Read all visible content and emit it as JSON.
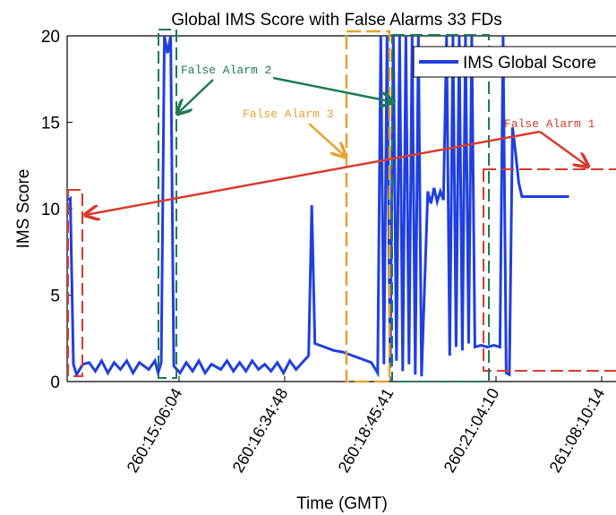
{
  "chart_data": {
    "type": "line",
    "title": "Global IMS Score with False Alarms 33 FDs",
    "xlabel": "Time (GMT)",
    "ylabel": "IMS Score",
    "ylim": [
      0,
      20
    ],
    "yticks": [
      0,
      5,
      10,
      15,
      20
    ],
    "xticks": [
      "260:15:06:04",
      "260:16:34:48",
      "260:18:45:41",
      "260:21:04:10",
      "261:08:10:14"
    ],
    "grid": false,
    "legend_position": "top-right",
    "series": [
      {
        "name": "IMS Global Score",
        "color": "#1f3fe0",
        "values": [
          [
            0.0,
            10.5
          ],
          [
            0.01,
            10.6
          ],
          [
            0.02,
            1.0
          ],
          [
            0.03,
            0.4
          ],
          [
            0.05,
            1.0
          ],
          [
            0.07,
            1.1
          ],
          [
            0.09,
            0.6
          ],
          [
            0.11,
            1.2
          ],
          [
            0.13,
            0.5
          ],
          [
            0.15,
            1.1
          ],
          [
            0.17,
            0.7
          ],
          [
            0.19,
            1.2
          ],
          [
            0.21,
            0.5
          ],
          [
            0.23,
            1.1
          ],
          [
            0.26,
            0.7
          ],
          [
            0.28,
            1.2
          ],
          [
            0.29,
            0.5
          ],
          [
            0.3,
            1.1
          ],
          [
            0.31,
            20
          ],
          [
            0.32,
            19
          ],
          [
            0.33,
            20
          ],
          [
            0.34,
            0.9
          ],
          [
            0.36,
            0.5
          ],
          [
            0.38,
            1.1
          ],
          [
            0.4,
            0.6
          ],
          [
            0.42,
            1.2
          ],
          [
            0.44,
            0.5
          ],
          [
            0.46,
            1.0
          ],
          [
            0.49,
            0.7
          ],
          [
            0.51,
            1.2
          ],
          [
            0.53,
            0.6
          ],
          [
            0.55,
            1.1
          ],
          [
            0.57,
            0.6
          ],
          [
            0.59,
            1.2
          ],
          [
            0.61,
            0.7
          ],
          [
            0.63,
            1.0
          ],
          [
            0.65,
            0.6
          ],
          [
            0.67,
            1.1
          ],
          [
            0.69,
            0.5
          ],
          [
            0.71,
            1.2
          ],
          [
            0.73,
            0.7
          ],
          [
            0.75,
            1.1
          ],
          [
            0.77,
            1.5
          ],
          [
            0.78,
            10.2
          ],
          [
            0.79,
            2.2
          ],
          [
            0.82,
            2.0
          ],
          [
            0.85,
            1.8
          ],
          [
            0.88,
            1.7
          ],
          [
            0.91,
            1.5
          ],
          [
            0.94,
            1.3
          ],
          [
            0.97,
            1.1
          ],
          [
            0.99,
            0.5
          ],
          [
            1.0,
            20
          ],
          [
            1.01,
            1.0
          ],
          [
            1.02,
            20
          ],
          [
            1.03,
            0.8
          ],
          [
            1.04,
            20
          ],
          [
            1.05,
            1.2
          ],
          [
            1.06,
            20
          ],
          [
            1.07,
            0.6
          ],
          [
            1.08,
            20
          ],
          [
            1.09,
            1.0
          ],
          [
            1.1,
            20
          ],
          [
            1.11,
            0.4
          ],
          [
            1.12,
            20
          ],
          [
            1.13,
            0.3
          ],
          [
            1.15,
            11.0
          ],
          [
            1.16,
            10.3
          ],
          [
            1.17,
            11.2
          ],
          [
            1.18,
            10.4
          ],
          [
            1.19,
            11.0
          ],
          [
            1.2,
            10.5
          ],
          [
            1.21,
            20
          ],
          [
            1.22,
            1.5
          ],
          [
            1.23,
            20
          ],
          [
            1.24,
            2.0
          ],
          [
            1.25,
            20
          ],
          [
            1.26,
            1.8
          ],
          [
            1.27,
            20
          ],
          [
            1.28,
            2.2
          ],
          [
            1.29,
            20
          ],
          [
            1.3,
            2.0
          ],
          [
            1.32,
            2.1
          ],
          [
            1.34,
            2.0
          ],
          [
            1.36,
            2.1
          ],
          [
            1.38,
            2.0
          ],
          [
            1.39,
            20
          ],
          [
            1.4,
            0.5
          ],
          [
            1.41,
            0.4
          ],
          [
            1.42,
            14.7
          ],
          [
            1.43,
            13.2
          ],
          [
            1.44,
            11.5
          ],
          [
            1.45,
            10.7
          ],
          [
            1.48,
            10.7
          ],
          [
            1.55,
            10.7
          ],
          [
            1.6,
            10.7
          ]
        ]
      }
    ],
    "regions": [
      {
        "label": "False Alarm 1",
        "color": "#d93a2e"
      },
      {
        "label": "False Alarm 2",
        "color": "#1f7a55"
      },
      {
        "label": "False Alarm 3",
        "color": "#e8a030"
      }
    ]
  }
}
